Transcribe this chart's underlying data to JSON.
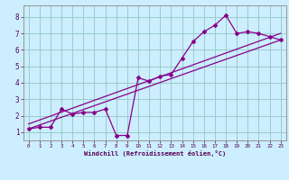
{
  "xlabel": "Windchill (Refroidissement éolien,°C)",
  "bg_color": "#cceeff",
  "line_color": "#880088",
  "grid_color": "#99cccc",
  "xlim": [
    -0.5,
    23.5
  ],
  "ylim": [
    0.5,
    8.7
  ],
  "xticks": [
    0,
    1,
    2,
    3,
    4,
    5,
    6,
    7,
    8,
    9,
    10,
    11,
    12,
    13,
    14,
    15,
    16,
    17,
    18,
    19,
    20,
    21,
    22,
    23
  ],
  "yticks": [
    1,
    2,
    3,
    4,
    5,
    6,
    7,
    8
  ],
  "series1_x": [
    0,
    1,
    2,
    3,
    4,
    5,
    6,
    7,
    8,
    9,
    10,
    11,
    12,
    13,
    14,
    15,
    16,
    17,
    18,
    19,
    20,
    21,
    22,
    23
  ],
  "series1_y": [
    1.2,
    1.3,
    1.3,
    2.4,
    2.1,
    2.2,
    2.2,
    2.4,
    0.8,
    0.8,
    4.3,
    4.1,
    4.4,
    4.5,
    5.5,
    6.5,
    7.1,
    7.5,
    8.1,
    7.0,
    7.1,
    7.0,
    6.8,
    6.6
  ],
  "series2_x": [
    0,
    23
  ],
  "series2_y": [
    1.2,
    6.6
  ],
  "series3_x": [
    0,
    23
  ],
  "series3_y": [
    1.5,
    7.0
  ]
}
